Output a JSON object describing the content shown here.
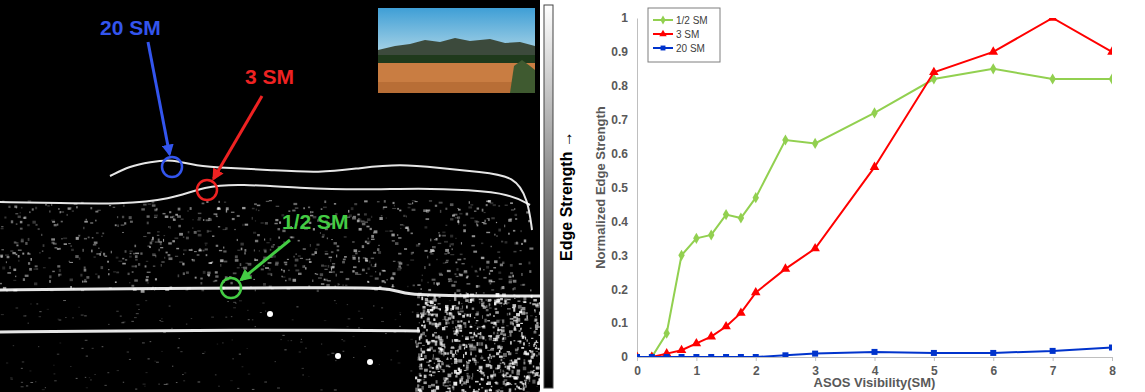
{
  "chart_data": {
    "type": "line",
    "x_label": "ASOS Visibility(SM)",
    "y_label": "Normalized Edge Strength",
    "x": [
      0,
      0.25,
      0.5,
      0.75,
      1,
      1.25,
      1.5,
      1.75,
      2,
      2.5,
      3,
      4,
      5,
      6,
      7,
      8
    ],
    "xlim": [
      0,
      8
    ],
    "xticks": [
      0,
      1,
      2,
      3,
      4,
      5,
      6,
      7,
      8
    ],
    "ylim": [
      0,
      1
    ],
    "yticks": [
      0,
      0.1,
      0.2,
      0.3,
      0.4,
      0.5,
      0.6,
      0.7,
      0.8,
      0.9,
      1
    ],
    "grid": false,
    "legend": "upper left",
    "series": [
      {
        "name": "1/2 SM",
        "color": "#92d050",
        "marker": "diamond",
        "values": [
          0,
          0,
          0.07,
          0.3,
          0.35,
          0.36,
          0.42,
          0.41,
          0.47,
          0.64,
          0.63,
          0.72,
          0.82,
          0.85,
          0.82,
          0.82
        ]
      },
      {
        "name": "3 SM",
        "color": "#ff0000",
        "marker": "triangle",
        "values": [
          0,
          0,
          0.01,
          0.02,
          0.04,
          0.06,
          0.09,
          0.13,
          0.19,
          0.26,
          0.32,
          0.56,
          0.84,
          0.9,
          1,
          0.9
        ]
      },
      {
        "name": "20 SM",
        "color": "#0033cc",
        "marker": "square",
        "values": [
          0,
          0,
          0,
          0,
          0,
          0,
          0,
          0,
          0,
          0.005,
          0.01,
          0.015,
          0.012,
          0.012,
          0.018,
          0.028
        ]
      }
    ]
  },
  "image_panel": {
    "colorbar_label": "Edge Strength →",
    "annotations": [
      {
        "label": "20 SM",
        "color": "#3355ee"
      },
      {
        "label": "3 SM",
        "color": "#ee2222"
      },
      {
        "label": "1/2 SM",
        "color": "#44cc44"
      }
    ]
  }
}
